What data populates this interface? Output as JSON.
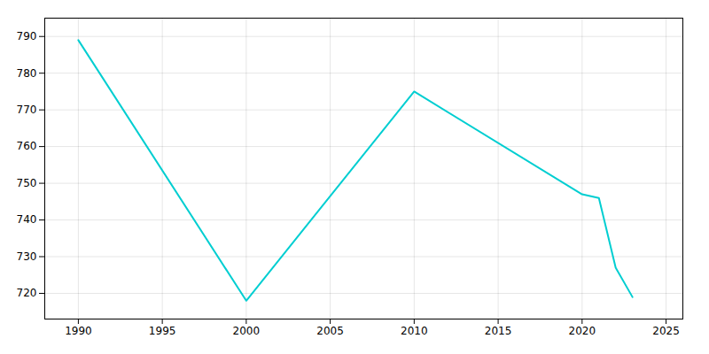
{
  "chart_data": {
    "type": "line",
    "x": [
      1990,
      2000,
      2010,
      2020,
      2021,
      2022,
      2023
    ],
    "values": [
      789,
      718,
      775,
      747,
      746,
      727,
      719
    ],
    "color": "#00CED1",
    "xlim": [
      1988,
      2026
    ],
    "ylim": [
      713,
      795
    ],
    "xticks": [
      1990,
      1995,
      2000,
      2005,
      2010,
      2015,
      2020,
      2025
    ],
    "yticks": [
      720,
      730,
      740,
      750,
      760,
      770,
      780,
      790
    ],
    "grid": true
  }
}
